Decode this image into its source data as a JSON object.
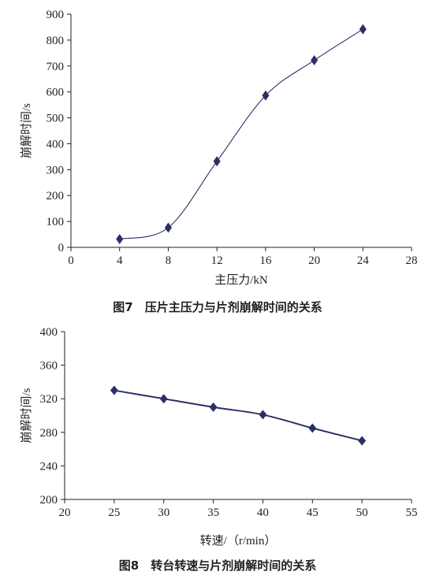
{
  "colors": {
    "series": "#2b2f66",
    "axis": "#231f20",
    "text": "#231f20"
  },
  "chart_data": [
    {
      "type": "scatter",
      "caption": "图7　压片主压力与片剂崩解时间的关系",
      "xlabel": "主压力/kN",
      "ylabel": "崩解时间/s",
      "xlim": [
        0,
        28
      ],
      "ylim": [
        0,
        900
      ],
      "xticks": [
        0,
        4,
        8,
        12,
        16,
        20,
        24,
        28
      ],
      "yticks": [
        0,
        100,
        200,
        300,
        400,
        500,
        600,
        700,
        800,
        900
      ],
      "grid": false,
      "marker": "diamond",
      "line": "smooth",
      "series": [
        {
          "x": [
            4,
            8,
            12,
            16,
            20,
            24
          ],
          "y": [
            32,
            76,
            332,
            586,
            722,
            842
          ]
        }
      ]
    },
    {
      "type": "line",
      "caption": "图8　转台转速与片剂崩解时间的关系",
      "xlabel": "转速/（r/min）",
      "ylabel": "崩解时间/s",
      "xlim": [
        20,
        55
      ],
      "ylim": [
        200,
        400
      ],
      "xticks": [
        20,
        25,
        30,
        35,
        40,
        45,
        50,
        55
      ],
      "yticks": [
        200,
        240,
        280,
        320,
        360,
        400
      ],
      "grid": false,
      "marker": "diamond",
      "line": "smooth",
      "series": [
        {
          "x": [
            25,
            30,
            35,
            40,
            45,
            50
          ],
          "y": [
            330,
            320,
            310,
            301,
            285,
            270
          ]
        }
      ]
    }
  ]
}
